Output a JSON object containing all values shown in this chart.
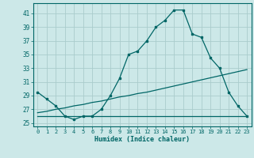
{
  "title": "",
  "xlabel": "Humidex (Indice chaleur)",
  "ylabel": "",
  "background_color": "#cce8e8",
  "grid_color": "#aacccc",
  "line_color": "#006666",
  "x_values": [
    0,
    1,
    2,
    3,
    4,
    5,
    6,
    7,
    8,
    9,
    10,
    11,
    12,
    13,
    14,
    15,
    16,
    17,
    18,
    19,
    20,
    21,
    22,
    23
  ],
  "line1_y": [
    29.5,
    28.5,
    27.5,
    26.0,
    25.5,
    26.0,
    26.0,
    27.0,
    29.0,
    31.5,
    35.0,
    35.5,
    37.0,
    39.0,
    40.0,
    41.5,
    41.5,
    38.0,
    37.5,
    34.5,
    33.0,
    29.5,
    27.5,
    26.0
  ],
  "line2_y": [
    26.0,
    26.0,
    26.0,
    26.0,
    26.0,
    26.0,
    26.0,
    26.0,
    26.0,
    26.0,
    26.0,
    26.0,
    26.0,
    26.0,
    26.0,
    26.0,
    26.0,
    26.0,
    26.0,
    26.0,
    26.0,
    26.0,
    26.0,
    26.0
  ],
  "line3_y": [
    26.5,
    26.7,
    27.0,
    27.2,
    27.5,
    27.7,
    28.0,
    28.2,
    28.5,
    28.8,
    29.0,
    29.3,
    29.5,
    29.8,
    30.1,
    30.4,
    30.7,
    31.0,
    31.3,
    31.6,
    31.9,
    32.2,
    32.5,
    32.8
  ],
  "ylim": [
    24.5,
    42.5
  ],
  "xlim": [
    -0.5,
    23.5
  ],
  "yticks": [
    25,
    27,
    29,
    31,
    33,
    35,
    37,
    39,
    41
  ],
  "xticks": [
    0,
    1,
    2,
    3,
    4,
    5,
    6,
    7,
    8,
    9,
    10,
    11,
    12,
    13,
    14,
    15,
    16,
    17,
    18,
    19,
    20,
    21,
    22,
    23
  ]
}
